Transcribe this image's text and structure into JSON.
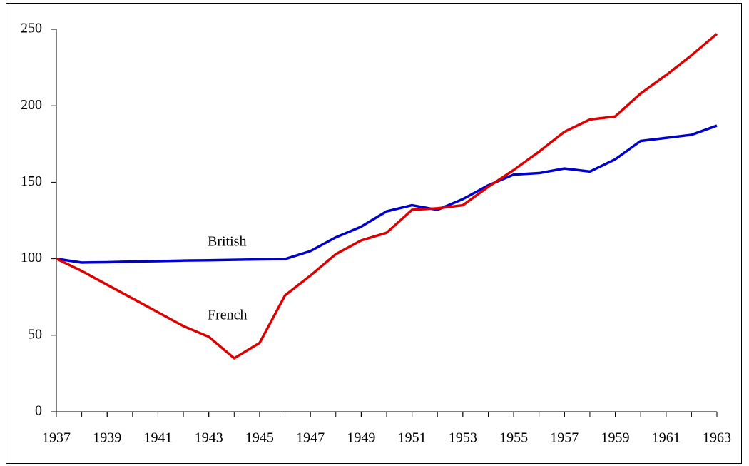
{
  "chart_data": {
    "type": "line",
    "x": [
      1937,
      1938,
      1939,
      1940,
      1941,
      1942,
      1943,
      1944,
      1945,
      1946,
      1947,
      1948,
      1949,
      1950,
      1951,
      1952,
      1953,
      1954,
      1955,
      1956,
      1957,
      1958,
      1959,
      1960,
      1961,
      1962,
      1963
    ],
    "series": [
      {
        "name": "British",
        "color": "#0000cc",
        "values": [
          100,
          97.5,
          97.7,
          98.2,
          98.4,
          98.8,
          99,
          99.3,
          99.6,
          99.8,
          105,
          114,
          121,
          131,
          135,
          132,
          139,
          148,
          155,
          156,
          159,
          157,
          165,
          177,
          179,
          181,
          187
        ]
      },
      {
        "name": "French",
        "color": "#dd0000",
        "values": [
          100,
          92,
          83,
          74,
          65,
          56,
          49,
          35,
          45,
          76,
          89,
          103,
          112,
          117,
          132,
          133,
          135,
          147,
          158,
          170,
          183,
          191,
          193,
          208,
          220,
          233,
          247
        ]
      }
    ],
    "xlim": [
      1937,
      1963
    ],
    "xticks": [
      1937,
      1939,
      1941,
      1943,
      1945,
      1947,
      1949,
      1951,
      1953,
      1955,
      1957,
      1959,
      1961,
      1963
    ],
    "ylim": [
      0,
      250
    ],
    "yticks": [
      0,
      50,
      100,
      150,
      200,
      250
    ]
  }
}
